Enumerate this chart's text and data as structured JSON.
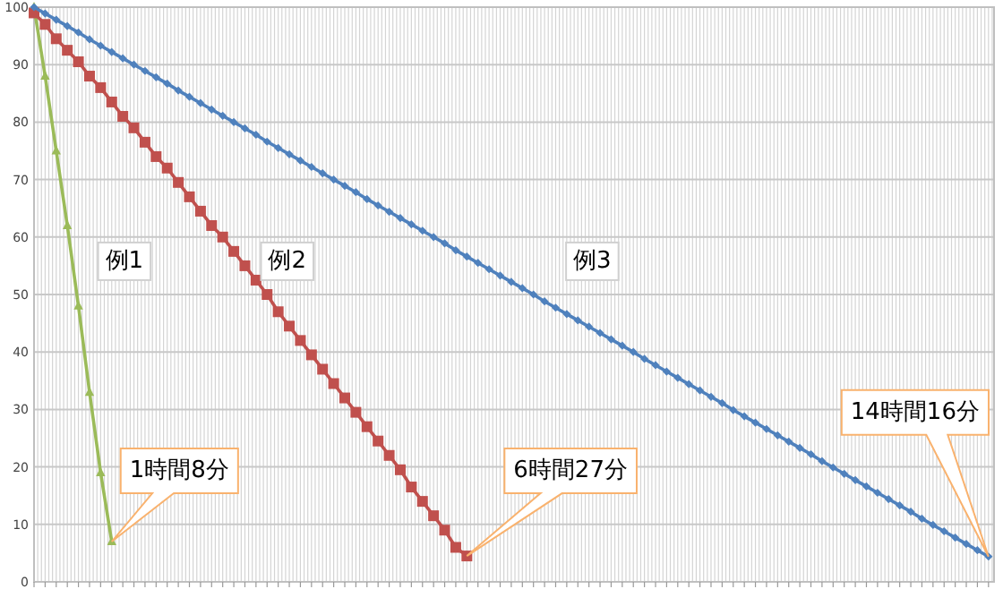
{
  "chart_data": {
    "type": "line",
    "categories": [
      null,
      null,
      null,
      null,
      null,
      null,
      null,
      null,
      null,
      null,
      null,
      null,
      null,
      null,
      null,
      null,
      null,
      null,
      null,
      null,
      null,
      null,
      null,
      null,
      null,
      null,
      null,
      null,
      null,
      null,
      null,
      null,
      null,
      null,
      null,
      null,
      null,
      null,
      null,
      null,
      null,
      null,
      null,
      null,
      null,
      null,
      null,
      null,
      null,
      null,
      null,
      null,
      null,
      null,
      null,
      null,
      null,
      null,
      null,
      null,
      null,
      null,
      null,
      null,
      null,
      null,
      null,
      null,
      null,
      null,
      null,
      null,
      null,
      null,
      null,
      null,
      null,
      null,
      null,
      null,
      null,
      null,
      null,
      null,
      null,
      null,
      null
    ],
    "series": [
      {
        "name": "例1",
        "color": "#9bbb59",
        "marker": "triangle",
        "values": [
          100,
          88,
          75,
          62,
          48,
          33,
          19,
          7,
          null,
          null,
          null,
          null,
          null,
          null,
          null,
          null,
          null,
          null,
          null,
          null,
          null,
          null,
          null,
          null,
          null,
          null,
          null,
          null,
          null,
          null,
          null,
          null,
          null,
          null,
          null,
          null,
          null,
          null,
          null,
          null,
          null,
          null,
          null,
          null,
          null,
          null,
          null,
          null,
          null,
          null,
          null,
          null,
          null,
          null,
          null,
          null,
          null,
          null,
          null,
          null,
          null,
          null,
          null,
          null,
          null,
          null,
          null,
          null,
          null,
          null,
          null,
          null,
          null,
          null,
          null,
          null,
          null,
          null,
          null,
          null,
          null,
          null,
          null,
          null,
          null,
          null,
          null
        ]
      },
      {
        "name": "例2",
        "color": "#c0504d",
        "marker": "square",
        "values": [
          99,
          97,
          94.5,
          92.5,
          90.5,
          88,
          86,
          83.5,
          81,
          79,
          76.5,
          74,
          72,
          69.5,
          67,
          64.5,
          62,
          60,
          57.5,
          55,
          52.5,
          50,
          47,
          44.5,
          42,
          39.5,
          37,
          34.5,
          32,
          29.5,
          27,
          24.5,
          22,
          19.5,
          16.5,
          14,
          11.5,
          9,
          6,
          4.5,
          null,
          null,
          null,
          null,
          null,
          null,
          null,
          null,
          null,
          null,
          null,
          null,
          null,
          null,
          null,
          null,
          null,
          null,
          null,
          null,
          null,
          null,
          null,
          null,
          null,
          null,
          null,
          null,
          null,
          null,
          null,
          null,
          null,
          null,
          null,
          null,
          null,
          null,
          null,
          null,
          null,
          null,
          null,
          null,
          null,
          null,
          null
        ]
      },
      {
        "name": "例3",
        "color": "#4f81bd",
        "marker": "diamond",
        "values": [
          100,
          98.9,
          97.8,
          96.7,
          95.6,
          94.4,
          93.3,
          92.2,
          91.1,
          90.0,
          88.9,
          87.8,
          86.7,
          85.5,
          84.4,
          83.3,
          82.2,
          81.1,
          80.0,
          78.9,
          77.8,
          76.6,
          75.5,
          74.4,
          73.3,
          72.2,
          71.1,
          70.0,
          68.9,
          67.8,
          66.6,
          65.5,
          64.4,
          63.3,
          62.2,
          61.1,
          60.0,
          58.9,
          57.7,
          56.6,
          55.5,
          54.4,
          53.3,
          52.2,
          51.1,
          50.0,
          48.8,
          47.7,
          46.6,
          45.5,
          44.4,
          43.3,
          42.2,
          41.1,
          40.0,
          38.8,
          37.7,
          36.6,
          35.5,
          34.4,
          33.3,
          32.2,
          31.1,
          29.9,
          28.8,
          27.7,
          26.6,
          25.5,
          24.4,
          23.3,
          22.2,
          21.0,
          19.9,
          18.8,
          17.7,
          16.6,
          15.5,
          14.4,
          13.3,
          12.2,
          11.0,
          9.9,
          8.8,
          7.7,
          6.6,
          5.5,
          4.4
        ]
      }
    ],
    "ylim": [
      0,
      100
    ],
    "yticks": [
      0,
      10,
      20,
      30,
      40,
      50,
      60,
      70,
      80,
      90,
      100
    ],
    "grid": true,
    "annotations": [
      "1時間8分",
      "6時間27分",
      "14時間16分"
    ]
  }
}
